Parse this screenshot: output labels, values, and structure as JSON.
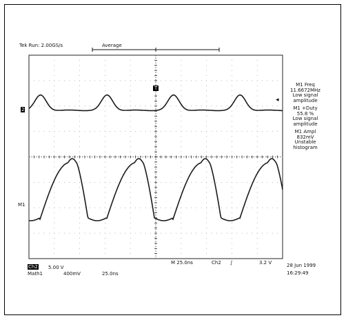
{
  "header": {
    "sample_rate": "Tek Run: 2.00GS/s",
    "mode": "Average"
  },
  "channel_markers": {
    "ch2": "2",
    "m1": "M1",
    "trigger_t": "T"
  },
  "measurements": [
    {
      "title": "M1 Freq",
      "value": "11.6672MHz",
      "note1": "Low signal",
      "note2": "amplitude"
    },
    {
      "title": "M1 +Duty",
      "value": "55.8 %",
      "note1": "Low signal",
      "note2": "amplitude"
    },
    {
      "title": "M1 Ampl",
      "value": "832mV",
      "note1": "Unstable",
      "note2": "histogram"
    }
  ],
  "bottom": {
    "ch_label": "Ch2",
    "ch_scale": "5.00 V",
    "math_label": "Math1",
    "math_scale": "400mV",
    "math_time": "25.0ns",
    "timebase": "M 25.0ns",
    "trigger_src": "Ch2",
    "trigger_slope": "∫",
    "trigger_level": "3.2 V",
    "date": "28 Jun 1999",
    "time": "16:29:49"
  },
  "colors": {
    "trace": "#1a1a1a",
    "grid": "#2b2b2b",
    "background": "#ffffff"
  },
  "chart_data": {
    "type": "line",
    "x_divisions": 10,
    "y_divisions": 8,
    "series": [
      {
        "name": "Ch2",
        "shape": "small periodic hump",
        "periods_on_screen": 2.9
      },
      {
        "name": "M1",
        "shape": "sawtooth-like pulse",
        "periods_on_screen": 2.9
      }
    ]
  }
}
